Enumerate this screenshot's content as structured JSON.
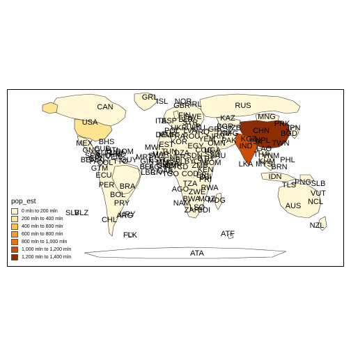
{
  "map": {
    "colors": {
      "ocean": "#ffffff",
      "border": "#333333",
      "frame": "#000000",
      "empty_land": "#ffffff"
    }
  },
  "legend": {
    "title": "pop_est",
    "items": [
      {
        "label": "0 mln to 200 mln",
        "color": "#fff7d5"
      },
      {
        "label": "200 mln to 400 mln",
        "color": "#fee391"
      },
      {
        "label": "400 mln to 600 mln",
        "color": "#fec44f"
      },
      {
        "label": "600 mln to 800 mln",
        "color": "#fe9929"
      },
      {
        "label": "800 mln to 1,000 mln",
        "color": "#ec7014"
      },
      {
        "label": "1,000 mln to 1,200 mln",
        "color": "#cc4c02"
      },
      {
        "label": "1,200 mln to 1,400 mln",
        "color": "#8c2d04"
      }
    ]
  },
  "labels": [
    {
      "text": "GRL"
    },
    {
      "text": "ISL"
    },
    {
      "text": "NOR"
    },
    {
      "text": "RUS"
    },
    {
      "text": "CAN"
    },
    {
      "text": "USA"
    },
    {
      "text": "MEX"
    },
    {
      "text": "BHS"
    },
    {
      "text": "CUB"
    },
    {
      "text": "HTI"
    },
    {
      "text": "VEN"
    },
    {
      "text": "COL"
    },
    {
      "text": "ECU"
    },
    {
      "text": "PER"
    },
    {
      "text": "BRA"
    },
    {
      "text": "BOL"
    },
    {
      "text": "PRY"
    },
    {
      "text": "URY"
    },
    {
      "text": "CHL"
    },
    {
      "text": "ARG"
    },
    {
      "text": "FLK"
    },
    {
      "text": "KAZ"
    },
    {
      "text": "MNG"
    },
    {
      "text": "CHN"
    },
    {
      "text": "IND"
    },
    {
      "text": "PRK"
    },
    {
      "text": "JPN"
    },
    {
      "text": "TWN"
    },
    {
      "text": "LKA"
    },
    {
      "text": "PHL"
    },
    {
      "text": "MYS"
    },
    {
      "text": "IDN"
    },
    {
      "text": "PNG"
    },
    {
      "text": "TLS"
    },
    {
      "text": "SLB"
    },
    {
      "text": "VUT"
    },
    {
      "text": "NCL"
    },
    {
      "text": "AUS"
    },
    {
      "text": "NZL"
    },
    {
      "text": "ATF"
    },
    {
      "text": "ATA"
    },
    {
      "text": "EST"
    },
    {
      "text": "TUN"
    },
    {
      "text": "MAR"
    },
    {
      "text": "ESH"
    },
    {
      "text": "MLI"
    },
    {
      "text": "NER"
    },
    {
      "text": "EGY"
    },
    {
      "text": "SDN"
    },
    {
      "text": "ETH"
    },
    {
      "text": "SOM"
    },
    {
      "text": "KEN"
    },
    {
      "text": "COD"
    },
    {
      "text": "AGO"
    },
    {
      "text": "NAM"
    },
    {
      "text": "BWA"
    },
    {
      "text": "ZAF"
    },
    {
      "text": "LSO"
    },
    {
      "text": "MOZ"
    },
    {
      "text": "MDG"
    },
    {
      "text": "ZWE"
    },
    {
      "text": "OMN"
    },
    {
      "text": "IRN"
    },
    {
      "text": "AFG"
    },
    {
      "text": "PAK"
    },
    {
      "text": "THA"
    },
    {
      "text": "VNM"
    },
    {
      "text": "LAO"
    },
    {
      "text": "KHM"
    },
    {
      "text": "BRN"
    },
    {
      "text": "GAB"
    },
    {
      "text": "CMR"
    },
    {
      "text": "NGA"
    },
    {
      "text": "GHA"
    },
    {
      "text": "CIV"
    },
    {
      "text": "LBR"
    },
    {
      "text": "SLE"
    },
    {
      "text": "GIN"
    },
    {
      "text": "SEN"
    },
    {
      "text": "GTM"
    },
    {
      "text": "PAN"
    },
    {
      "text": "CRI"
    },
    {
      "text": "NIC"
    },
    {
      "text": "HND"
    },
    {
      "text": "TTO"
    },
    {
      "text": "GUY"
    },
    {
      "text": "SUR"
    },
    {
      "text": "JAM"
    },
    {
      "text": "DOM"
    },
    {
      "text": "PRI"
    },
    {
      "text": "TZA"
    },
    {
      "text": "ZMB"
    },
    {
      "text": "UGA"
    },
    {
      "text": "SAU"
    },
    {
      "text": "YEM"
    },
    {
      "text": "IRQ"
    },
    {
      "text": "SYR"
    },
    {
      "text": "TUR"
    },
    {
      "text": "UKR"
    },
    {
      "text": "POL"
    },
    {
      "text": "DEU"
    },
    {
      "text": "FRA"
    },
    {
      "text": "ESP"
    },
    {
      "text": "ITA"
    },
    {
      "text": "GBR"
    },
    {
      "text": "IRL"
    },
    {
      "text": "SWE"
    },
    {
      "text": "FIN"
    },
    {
      "text": "BLR"
    },
    {
      "text": "LVA"
    },
    {
      "text": "LTU"
    },
    {
      "text": "ROU"
    },
    {
      "text": "BGR"
    },
    {
      "text": "GRC"
    },
    {
      "text": "UZB"
    },
    {
      "text": "TKM"
    },
    {
      "text": "KGZ"
    },
    {
      "text": "TJK"
    },
    {
      "text": "NPL"
    },
    {
      "text": "BGD"
    },
    {
      "text": "MMR"
    },
    {
      "text": "KOR"
    },
    {
      "text": "DZA"
    },
    {
      "text": "LBY"
    },
    {
      "text": "TCD"
    },
    {
      "text": "CAF"
    },
    {
      "text": "COG"
    },
    {
      "text": "SSD"
    },
    {
      "text": "ERI"
    },
    {
      "text": "DJI"
    },
    {
      "text": "RWA"
    },
    {
      "text": "BDI"
    },
    {
      "text": "MWI"
    },
    {
      "text": "SWZ"
    },
    {
      "text": "MRT"
    },
    {
      "text": "BFA"
    },
    {
      "text": "GMB"
    },
    {
      "text": "GNB"
    },
    {
      "text": "TGO"
    },
    {
      "text": "BEN"
    },
    {
      "text": "GNQ"
    },
    {
      "text": "SLV"
    },
    {
      "text": "BLZ"
    }
  ]
}
